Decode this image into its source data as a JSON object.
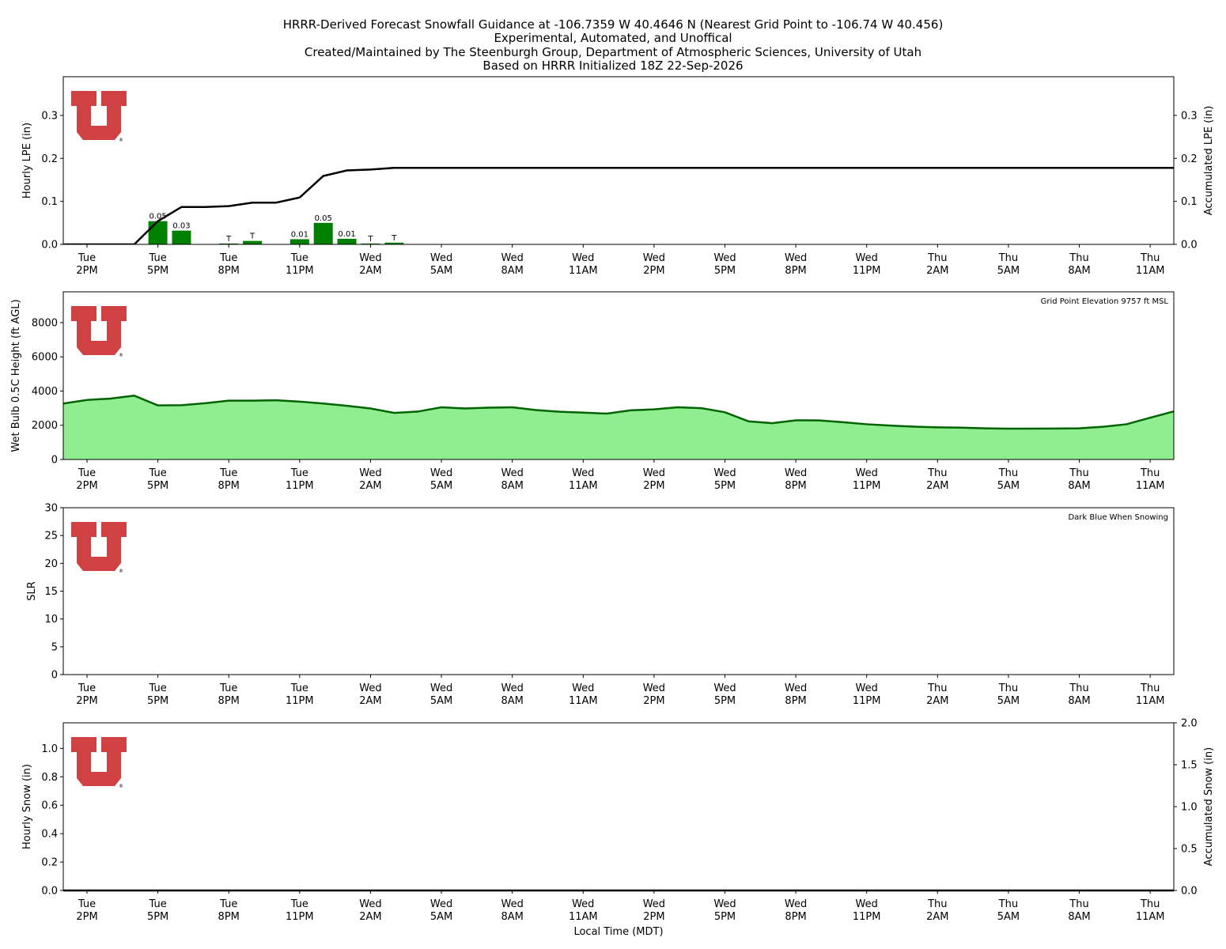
{
  "title_lines": [
    "HRRR-Derived Forecast Snowfall Guidance at -106.7359 W 40.4646 N (Nearest Grid Point to -106.74 W 40.456)",
    "Experimental, Automated, and Unoffical",
    "Created/Maintained by The Steenburgh Group, Department of Atmospheric Sciences, University of Utah",
    "Based on HRRR Initialized 18Z 22-Sep-2026"
  ],
  "xlabel": "Local Time (MDT)",
  "x_ticks": [
    {
      "day": "Tue",
      "time": "2PM"
    },
    {
      "day": "Tue",
      "time": "5PM"
    },
    {
      "day": "Tue",
      "time": "8PM"
    },
    {
      "day": "Tue",
      "time": "11PM"
    },
    {
      "day": "Wed",
      "time": "2AM"
    },
    {
      "day": "Wed",
      "time": "5AM"
    },
    {
      "day": "Wed",
      "time": "8AM"
    },
    {
      "day": "Wed",
      "time": "11AM"
    },
    {
      "day": "Wed",
      "time": "2PM"
    },
    {
      "day": "Wed",
      "time": "5PM"
    },
    {
      "day": "Wed",
      "time": "8PM"
    },
    {
      "day": "Wed",
      "time": "11PM"
    },
    {
      "day": "Thu",
      "time": "2AM"
    },
    {
      "day": "Thu",
      "time": "5AM"
    },
    {
      "day": "Thu",
      "time": "8AM"
    },
    {
      "day": "Thu",
      "time": "11AM"
    }
  ],
  "colors": {
    "logo": "#d04143",
    "bars": "#008000",
    "fill": "#90ee90",
    "fill_line": "#006400",
    "line": "#000000"
  },
  "logo_mark": "®",
  "chart_data": [
    {
      "type": "bar",
      "panel": "lpe",
      "ylabel": "Hourly LPE (in)",
      "ylim": [
        0,
        0.39
      ],
      "yticks": [
        "0.0",
        "0.1",
        "0.2",
        "0.3"
      ],
      "ylabel_right": "Accumulated LPE (in)",
      "ylim_right": [
        0,
        0.39
      ],
      "yticks_right": [
        "0.0",
        "0.1",
        "0.2",
        "0.3"
      ],
      "hours": [
        -1,
        0,
        1,
        2,
        3,
        4,
        5,
        6,
        7,
        8,
        9,
        10,
        11,
        12,
        13,
        14,
        15,
        16,
        17,
        18,
        19,
        20,
        21,
        22,
        23,
        24,
        25,
        26,
        27,
        28,
        29,
        30,
        31,
        32,
        33,
        34,
        35,
        36,
        37,
        38,
        39,
        40,
        41,
        42,
        43,
        44,
        45,
        46,
        47
      ],
      "series": [
        {
          "kind": "bar",
          "hours": [
            3,
            4,
            6,
            7,
            9,
            10,
            11,
            12,
            13
          ],
          "values": [
            0.054,
            0.032,
            0.002,
            0.008,
            0.012,
            0.05,
            0.013,
            0.002,
            0.004
          ],
          "labels": [
            "0.05",
            "0.03",
            "T",
            "T",
            "0.01",
            "0.05",
            "0.01",
            "T",
            "T"
          ]
        },
        {
          "kind": "line",
          "values": [
            0.0,
            0.0,
            0.0,
            0.0,
            0.054,
            0.087,
            0.087,
            0.089,
            0.097,
            0.097,
            0.109,
            0.159,
            0.172,
            0.174,
            0.178,
            0.178,
            0.178,
            0.178,
            0.178,
            0.178,
            0.178,
            0.178,
            0.178,
            0.178,
            0.178,
            0.178,
            0.178,
            0.178,
            0.178,
            0.178,
            0.178,
            0.178,
            0.178,
            0.178,
            0.178,
            0.178,
            0.178,
            0.178,
            0.178,
            0.178,
            0.178,
            0.178,
            0.178,
            0.178,
            0.178,
            0.178,
            0.178,
            0.178,
            0.178
          ]
        }
      ]
    },
    {
      "type": "area",
      "panel": "wetbulb",
      "ylabel": "Wet Bulb 0.5C Height (ft AGL)",
      "ylim": [
        0,
        9800
      ],
      "yticks": [
        "0",
        "2000",
        "4000",
        "6000",
        "8000"
      ],
      "annotation": "Grid Point Elevation 9757 ft MSL",
      "hours": [
        -1,
        0,
        1,
        2,
        3,
        4,
        5,
        6,
        7,
        8,
        9,
        10,
        11,
        12,
        13,
        14,
        15,
        16,
        17,
        18,
        19,
        20,
        21,
        22,
        23,
        24,
        25,
        26,
        27,
        28,
        29,
        30,
        31,
        32,
        33,
        34,
        35,
        36,
        37,
        38,
        39,
        40,
        41,
        42,
        43,
        44,
        45,
        46,
        47
      ],
      "values": [
        3270,
        3480,
        3560,
        3730,
        3160,
        3170,
        3290,
        3440,
        3440,
        3460,
        3380,
        3270,
        3140,
        2980,
        2720,
        2800,
        3050,
        2980,
        3030,
        3050,
        2890,
        2790,
        2740,
        2680,
        2870,
        2930,
        3050,
        3000,
        2760,
        2230,
        2120,
        2290,
        2280,
        2180,
        2060,
        1980,
        1920,
        1880,
        1860,
        1820,
        1800,
        1800,
        1810,
        1820,
        1910,
        2060,
        2440,
        2810,
        2810
      ]
    },
    {
      "type": "line",
      "panel": "slr",
      "ylabel": "SLR",
      "ylim": [
        0,
        30
      ],
      "yticks": [
        "0",
        "5",
        "10",
        "15",
        "20",
        "25",
        "30"
      ],
      "annotation": "Dark Blue When Snowing",
      "values": []
    },
    {
      "type": "bar",
      "panel": "snow",
      "ylabel": "Hourly Snow (in)",
      "ylim": [
        0,
        1.18
      ],
      "yticks": [
        "0.0",
        "0.2",
        "0.4",
        "0.6",
        "0.8",
        "1.0"
      ],
      "ylabel_right": "Accumulated Snow (in)",
      "ylim_right": [
        0,
        2.0
      ],
      "yticks_right": [
        "0.0",
        "0.5",
        "1.0",
        "1.5",
        "2.0"
      ],
      "values": [],
      "accumulated": [
        0.0,
        0.0
      ]
    }
  ]
}
